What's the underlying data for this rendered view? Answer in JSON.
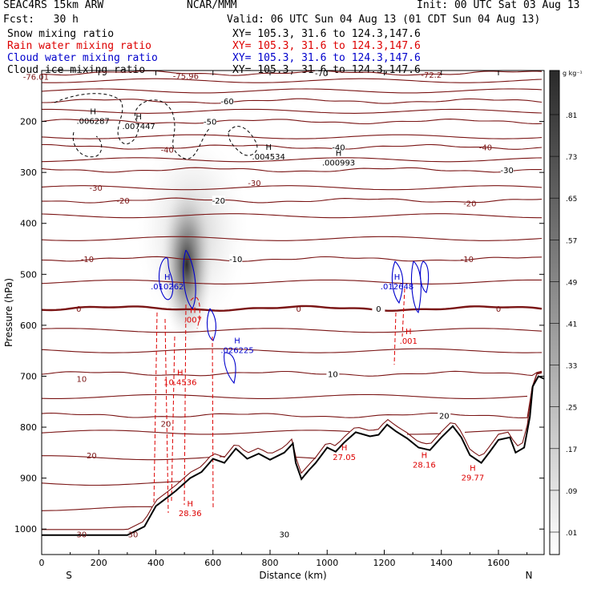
{
  "header": {
    "model": "SEAC4RS 15km ARW",
    "center": "NCAR/MMM",
    "init": "Init: 00 UTC Sat 03 Aug 13",
    "fcst": "Fcst:   30 h",
    "valid": "Valid: 06 UTC Sun 04 Aug 13 (01 CDT Sun 04 Aug 13)",
    "fields": [
      {
        "label": "Snow mixing ratio",
        "xy": "XY= 105.3, 31.6 to 124.3,147.6",
        "color": "#000000"
      },
      {
        "label": "Rain water mixing ratio",
        "xy": "XY= 105.3, 31.6 to 124.3,147.6",
        "color": "#dd0000"
      },
      {
        "label": "Cloud water mixing ratio",
        "xy": "XY= 105.3, 31.6 to 124.3,147.6",
        "color": "#0000cc"
      },
      {
        "label": "Cloud ice mixing ratio",
        "xy": "XY= 105.3, 31.6 to 124.3,147.6",
        "color": "#000000"
      }
    ]
  },
  "colors": {
    "temperature_contour": "#7a1414",
    "zero_isotherm": "#7a1414",
    "terrain": "#000000",
    "rain": "#dd0000",
    "cloud_water": "#0000cc",
    "cloud_ice": "#000000"
  },
  "chart_data": {
    "type": "contour cross-section",
    "xlabel": "Distance (km)",
    "ylabel": "Pressure (hPa)",
    "x_ticks": [
      0,
      200,
      400,
      600,
      800,
      1000,
      1200,
      1400,
      1600
    ],
    "y_ticks": [
      200,
      300,
      400,
      500,
      600,
      700,
      800,
      900,
      1000
    ],
    "xlim": [
      0,
      1760
    ],
    "ylim": [
      1050,
      100
    ],
    "left_end_label": "S",
    "right_end_label": "N",
    "colorbar": {
      "unit": "g kg⁻¹",
      "ticks": [
        ".01",
        ".09",
        ".17",
        ".25",
        ".33",
        ".41",
        ".49",
        ".57",
        ".65",
        ".73",
        ".81"
      ]
    },
    "temperature_contours": [
      {
        "label": "-70",
        "p": 105,
        "label_x": 980
      },
      {
        "label": "-60",
        "p": 160,
        "label_x": 650
      },
      {
        "label": "-50",
        "p": 200,
        "label_x": 590
      },
      {
        "label": "-40",
        "p": 250,
        "label_x": 1040
      },
      {
        "label": "-30",
        "p": 295,
        "label_x": 1630
      },
      {
        "label": "-20",
        "p": 355,
        "label_x": 620
      },
      {
        "label": "-10",
        "p": 470,
        "label_x": 680
      },
      {
        "label": "0",
        "p": 567,
        "label_x": 1180
      },
      {
        "label": "10",
        "p": 695,
        "label_x": 1020
      },
      {
        "label": "20",
        "p": 777,
        "label_x": 1410
      },
      {
        "label": "30",
        "p": 1010,
        "label_x": 850
      }
    ],
    "extra_labels": [
      {
        "text": "-76.01",
        "x": -20,
        "p": 112,
        "color": "temperature_contour"
      },
      {
        "text": "-75.96",
        "x": 505,
        "p": 110,
        "color": "temperature_contour"
      },
      {
        "text": "-72.2",
        "x": 1365,
        "p": 108,
        "color": "temperature_contour"
      },
      {
        "text": "-40",
        "x": 440,
        "p": 255,
        "color": "temperature_contour"
      },
      {
        "text": "-30",
        "x": 190,
        "p": 330,
        "color": "temperature_contour"
      },
      {
        "text": "-30",
        "x": 745,
        "p": 320,
        "color": "temperature_contour"
      },
      {
        "text": "-40",
        "x": 1555,
        "p": 250,
        "color": "temperature_contour"
      },
      {
        "text": "-20",
        "x": 1500,
        "p": 360,
        "color": "temperature_contour"
      },
      {
        "text": "-20",
        "x": 285,
        "p": 355,
        "color": "temperature_contour"
      },
      {
        "text": "-10",
        "x": 1490,
        "p": 470,
        "color": "temperature_contour"
      },
      {
        "text": "-10",
        "x": 160,
        "p": 470,
        "color": "temperature_contour"
      },
      {
        "text": "0",
        "x": 130,
        "p": 567,
        "color": "temperature_contour"
      },
      {
        "text": "0",
        "x": 1600,
        "p": 567,
        "color": "temperature_contour"
      },
      {
        "text": "0",
        "x": 900,
        "p": 567,
        "color": "temperature_contour"
      },
      {
        "text": "10",
        "x": 140,
        "p": 705,
        "color": "temperature_contour"
      },
      {
        "text": "20",
        "x": 175,
        "p": 855,
        "color": "temperature_contour"
      },
      {
        "text": "20",
        "x": 435,
        "p": 793,
        "color": "temperature_contour"
      },
      {
        "text": "30",
        "x": 140,
        "p": 1010,
        "color": "temperature_contour"
      },
      {
        "text": "30",
        "x": 320,
        "p": 1010,
        "color": "temperature_contour"
      }
    ],
    "maxima": [
      {
        "text": ".006287",
        "x": 180,
        "p": 200,
        "color": "cloud_ice"
      },
      {
        "text": ".007447",
        "x": 340,
        "p": 210,
        "color": "cloud_ice"
      },
      {
        "text": ".004534",
        "x": 795,
        "p": 270,
        "color": "cloud_ice"
      },
      {
        "text": ".000993",
        "x": 1040,
        "p": 282,
        "color": "cloud_ice"
      },
      {
        "text": ".010262",
        "x": 440,
        "p": 525,
        "color": "cloud_water"
      },
      {
        "text": ".026225",
        "x": 685,
        "p": 650,
        "color": "cloud_water"
      },
      {
        "text": ".012648",
        "x": 1245,
        "p": 525,
        "color": "cloud_water"
      },
      {
        "text": ".007",
        "x": 530,
        "p": 590,
        "color": "rain"
      },
      {
        "text": ".001",
        "x": 1285,
        "p": 632,
        "color": "rain"
      },
      {
        "text": "10.4536",
        "x": 485,
        "p": 713,
        "color": "rain"
      },
      {
        "text": "28.36",
        "x": 520,
        "p": 970,
        "color": "rain"
      },
      {
        "text": "27.05",
        "x": 1060,
        "p": 860,
        "color": "rain"
      },
      {
        "text": "28.16",
        "x": 1340,
        "p": 875,
        "color": "rain"
      },
      {
        "text": "29.77",
        "x": 1510,
        "p": 900,
        "color": "rain"
      }
    ],
    "terrain_surface": [
      [
        0,
        1012
      ],
      [
        300,
        1012
      ],
      [
        360,
        995
      ],
      [
        400,
        955
      ],
      [
        440,
        938
      ],
      [
        470,
        925
      ],
      [
        520,
        900
      ],
      [
        560,
        888
      ],
      [
        600,
        862
      ],
      [
        640,
        870
      ],
      [
        680,
        842
      ],
      [
        720,
        862
      ],
      [
        760,
        852
      ],
      [
        800,
        864
      ],
      [
        850,
        850
      ],
      [
        880,
        832
      ],
      [
        890,
        870
      ],
      [
        910,
        902
      ],
      [
        935,
        885
      ],
      [
        960,
        870
      ],
      [
        1000,
        840
      ],
      [
        1030,
        848
      ],
      [
        1060,
        830
      ],
      [
        1100,
        810
      ],
      [
        1150,
        818
      ],
      [
        1180,
        815
      ],
      [
        1210,
        795
      ],
      [
        1240,
        808
      ],
      [
        1280,
        822
      ],
      [
        1320,
        840
      ],
      [
        1360,
        845
      ],
      [
        1400,
        820
      ],
      [
        1440,
        798
      ],
      [
        1470,
        820
      ],
      [
        1500,
        855
      ],
      [
        1540,
        870
      ],
      [
        1570,
        848
      ],
      [
        1600,
        825
      ],
      [
        1640,
        820
      ],
      [
        1660,
        850
      ],
      [
        1690,
        840
      ],
      [
        1710,
        780
      ],
      [
        1720,
        720
      ],
      [
        1740,
        700
      ],
      [
        1760,
        705
      ]
    ]
  }
}
